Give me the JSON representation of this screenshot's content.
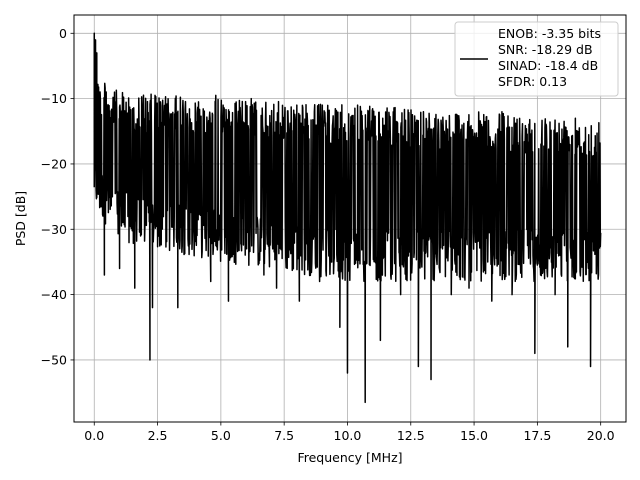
{
  "chart_data": {
    "type": "line",
    "title": "",
    "xlabel": "Frequency [MHz]",
    "ylabel": "PSD [dB]",
    "xlim": [
      -0.8,
      21.0
    ],
    "ylim": [
      -59.5,
      2.8
    ],
    "x_ticks": [
      0.0,
      2.5,
      5.0,
      7.5,
      10.0,
      12.5,
      15.0,
      17.5,
      20.0
    ],
    "x_tick_labels": [
      "0.0",
      "2.5",
      "5.0",
      "7.5",
      "10.0",
      "12.5",
      "15.0",
      "17.5",
      "20.0"
    ],
    "y_ticks": [
      0,
      -10,
      -20,
      -30,
      -40,
      -50
    ],
    "y_tick_labels": [
      "0",
      "−10",
      "−20",
      "−30",
      "−40",
      "−50"
    ],
    "grid": true,
    "legend_position": "top-right",
    "legend_lines": [
      "ENOB: -3.35 bits",
      "SNR: -18.29 dB",
      "SINAD: -18.4 dB",
      "SFDR: 0.13"
    ],
    "series": [
      {
        "color": "#000000",
        "x_range": [
          0.0,
          20.0
        ],
        "num_points": 1400,
        "peak": {
          "x": 0.0,
          "y": 0.0
        },
        "envelope": [
          {
            "x": 0.0,
            "upper": 0.0,
            "lower": -26
          },
          {
            "x": 0.2,
            "upper": -7,
            "lower": -28
          },
          {
            "x": 1.0,
            "upper": -9,
            "lower": -32
          },
          {
            "x": 5.0,
            "upper": -10,
            "lower": -35
          },
          {
            "x": 10.0,
            "upper": -11,
            "lower": -38
          },
          {
            "x": 15.0,
            "upper": -12,
            "lower": -38
          },
          {
            "x": 20.0,
            "upper": -13,
            "lower": -38
          }
        ],
        "typical_center": -21,
        "deep_dips": [
          {
            "x": 0.4,
            "y": -37
          },
          {
            "x": 1.0,
            "y": -36
          },
          {
            "x": 1.6,
            "y": -39
          },
          {
            "x": 2.2,
            "y": -50
          },
          {
            "x": 2.3,
            "y": -42
          },
          {
            "x": 3.3,
            "y": -42
          },
          {
            "x": 4.6,
            "y": -38
          },
          {
            "x": 5.3,
            "y": -41
          },
          {
            "x": 6.7,
            "y": -37
          },
          {
            "x": 7.2,
            "y": -39
          },
          {
            "x": 8.1,
            "y": -41
          },
          {
            "x": 8.9,
            "y": -38
          },
          {
            "x": 9.7,
            "y": -45
          },
          {
            "x": 10.0,
            "y": -52
          },
          {
            "x": 10.7,
            "y": -56.5
          },
          {
            "x": 11.3,
            "y": -47
          },
          {
            "x": 12.1,
            "y": -40
          },
          {
            "x": 12.8,
            "y": -51
          },
          {
            "x": 13.3,
            "y": -53
          },
          {
            "x": 14.1,
            "y": -40
          },
          {
            "x": 14.8,
            "y": -39
          },
          {
            "x": 15.7,
            "y": -41
          },
          {
            "x": 16.5,
            "y": -40
          },
          {
            "x": 17.4,
            "y": -49
          },
          {
            "x": 18.2,
            "y": -40
          },
          {
            "x": 18.7,
            "y": -48
          },
          {
            "x": 19.6,
            "y": -51
          }
        ],
        "tall_peaks": [
          {
            "x": 0.0,
            "y": 0.0
          },
          {
            "x": 0.05,
            "y": -1
          },
          {
            "x": 0.1,
            "y": -3
          },
          {
            "x": 0.8,
            "y": -9
          },
          {
            "x": 2.4,
            "y": -9.5
          },
          {
            "x": 3.4,
            "y": -10
          },
          {
            "x": 4.8,
            "y": -9.5
          },
          {
            "x": 6.2,
            "y": -10
          },
          {
            "x": 8.0,
            "y": -11
          },
          {
            "x": 10.4,
            "y": -11
          },
          {
            "x": 13.0,
            "y": -12
          },
          {
            "x": 16.1,
            "y": -12
          },
          {
            "x": 19.0,
            "y": -13
          }
        ]
      }
    ]
  }
}
